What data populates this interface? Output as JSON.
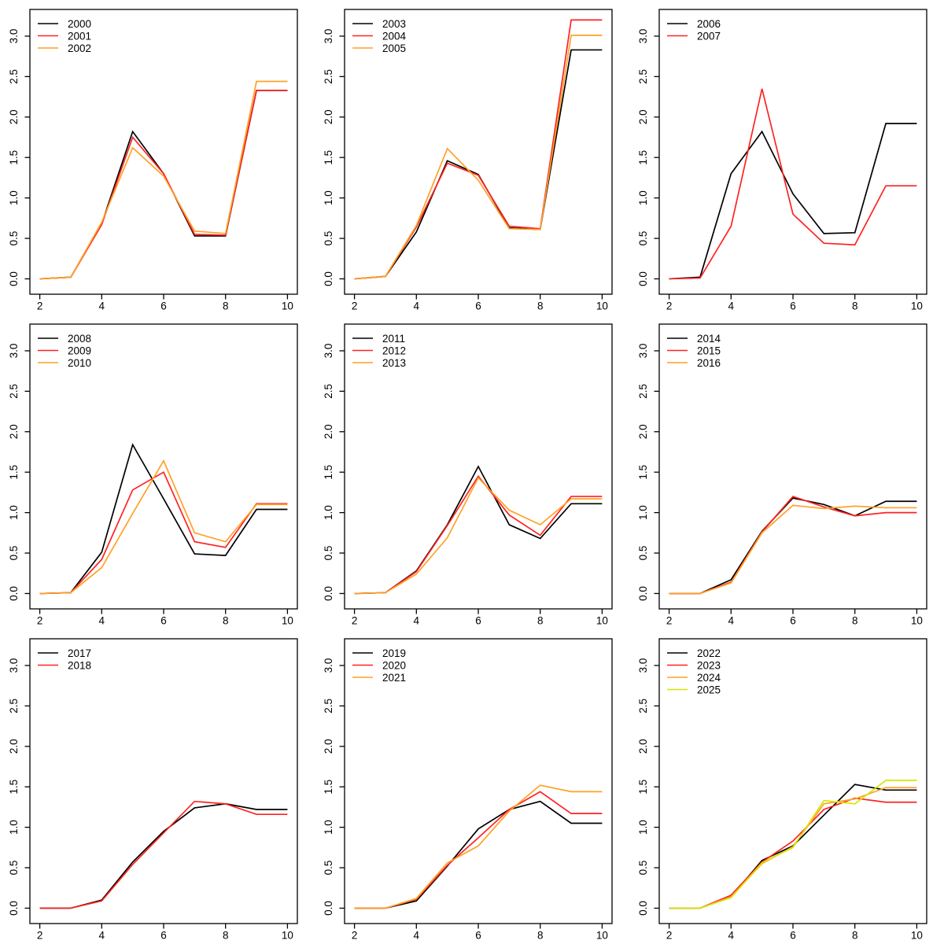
{
  "page": {
    "background": "#ffffff"
  },
  "palette": {
    "black": "#000000",
    "red": "#ff2222",
    "orange": "#ffa226",
    "yellow": "#d4e600"
  },
  "chart_data": [
    {
      "type": "line",
      "x": [
        2,
        3,
        4,
        5,
        6,
        7,
        8,
        9,
        10
      ],
      "xticks": [
        2,
        4,
        6,
        8,
        10
      ],
      "yticks": [
        0.0,
        0.5,
        1.0,
        1.5,
        2.0,
        2.5,
        3.0
      ],
      "ylim": [
        0,
        3.3
      ],
      "title": "",
      "xlabel": "",
      "ylabel": "",
      "grid": false,
      "legend_position": "top-left",
      "series": [
        {
          "name": "2000",
          "color": "#000000",
          "values": [
            0,
            0.02,
            0.68,
            1.82,
            1.3,
            0.53,
            0.53,
            2.33,
            2.33
          ]
        },
        {
          "name": "2001",
          "color": "#ff2222",
          "values": [
            0,
            0.02,
            0.67,
            1.75,
            1.3,
            0.55,
            0.54,
            2.33,
            2.33
          ]
        },
        {
          "name": "2002",
          "color": "#ffa226",
          "values": [
            0,
            0.02,
            0.7,
            1.62,
            1.27,
            0.59,
            0.56,
            2.44,
            2.44
          ]
        }
      ]
    },
    {
      "type": "line",
      "x": [
        2,
        3,
        4,
        5,
        6,
        7,
        8,
        9,
        10
      ],
      "xticks": [
        2,
        4,
        6,
        8,
        10
      ],
      "yticks": [
        0.0,
        0.5,
        1.0,
        1.5,
        2.0,
        2.5,
        3.0
      ],
      "ylim": [
        0,
        3.3
      ],
      "title": "",
      "xlabel": "",
      "ylabel": "",
      "grid": false,
      "legend_position": "top-left",
      "series": [
        {
          "name": "2003",
          "color": "#000000",
          "values": [
            0,
            0.03,
            0.58,
            1.46,
            1.29,
            0.63,
            0.61,
            2.83,
            2.83
          ]
        },
        {
          "name": "2004",
          "color": "#ff2222",
          "values": [
            0,
            0.03,
            0.64,
            1.43,
            1.28,
            0.65,
            0.62,
            3.2,
            3.2
          ]
        },
        {
          "name": "2005",
          "color": "#ffa226",
          "values": [
            0,
            0.03,
            0.66,
            1.61,
            1.22,
            0.62,
            0.61,
            3.01,
            3.01
          ]
        }
      ]
    },
    {
      "type": "line",
      "x": [
        2,
        3,
        4,
        5,
        6,
        7,
        8,
        9,
        10
      ],
      "xticks": [
        2,
        4,
        6,
        8,
        10
      ],
      "yticks": [
        0.0,
        0.5,
        1.0,
        1.5,
        2.0,
        2.5,
        3.0
      ],
      "ylim": [
        0,
        3.3
      ],
      "title": "",
      "xlabel": "",
      "ylabel": "",
      "grid": false,
      "legend_position": "top-left",
      "series": [
        {
          "name": "2006",
          "color": "#000000",
          "values": [
            0,
            0.02,
            1.3,
            1.82,
            1.05,
            0.56,
            0.57,
            1.92,
            1.92
          ]
        },
        {
          "name": "2007",
          "color": "#ff2222",
          "values": [
            0,
            0.01,
            0.65,
            2.35,
            0.8,
            0.44,
            0.42,
            1.15,
            1.15
          ]
        }
      ]
    },
    {
      "type": "line",
      "x": [
        2,
        3,
        4,
        5,
        6,
        7,
        8,
        9,
        10
      ],
      "xticks": [
        2,
        4,
        6,
        8,
        10
      ],
      "yticks": [
        0.0,
        0.5,
        1.0,
        1.5,
        2.0,
        2.5,
        3.0
      ],
      "ylim": [
        0,
        3.3
      ],
      "title": "",
      "xlabel": "",
      "ylabel": "",
      "grid": false,
      "legend_position": "top-left",
      "series": [
        {
          "name": "2008",
          "color": "#000000",
          "values": [
            0,
            0.01,
            0.51,
            1.84,
            1.17,
            0.49,
            0.47,
            1.04,
            1.04
          ]
        },
        {
          "name": "2009",
          "color": "#ff2222",
          "values": [
            0,
            0.01,
            0.42,
            1.28,
            1.5,
            0.64,
            0.57,
            1.11,
            1.11
          ]
        },
        {
          "name": "2010",
          "color": "#ffa226",
          "values": [
            0,
            0.01,
            0.32,
            0.99,
            1.64,
            0.75,
            0.64,
            1.1,
            1.1
          ]
        }
      ]
    },
    {
      "type": "line",
      "x": [
        2,
        3,
        4,
        5,
        6,
        7,
        8,
        9,
        10
      ],
      "xticks": [
        2,
        4,
        6,
        8,
        10
      ],
      "yticks": [
        0.0,
        0.5,
        1.0,
        1.5,
        2.0,
        2.5,
        3.0
      ],
      "ylim": [
        0,
        3.3
      ],
      "title": "",
      "xlabel": "",
      "ylabel": "",
      "grid": false,
      "legend_position": "top-left",
      "series": [
        {
          "name": "2011",
          "color": "#000000",
          "values": [
            0,
            0.01,
            0.28,
            0.85,
            1.57,
            0.85,
            0.68,
            1.11,
            1.11
          ]
        },
        {
          "name": "2012",
          "color": "#ff2222",
          "values": [
            0,
            0.01,
            0.27,
            0.84,
            1.45,
            0.97,
            0.72,
            1.2,
            1.2
          ]
        },
        {
          "name": "2013",
          "color": "#ffa226",
          "values": [
            0,
            0.01,
            0.24,
            0.69,
            1.43,
            1.03,
            0.85,
            1.17,
            1.17
          ]
        }
      ]
    },
    {
      "type": "line",
      "x": [
        2,
        3,
        4,
        5,
        6,
        7,
        8,
        9,
        10
      ],
      "xticks": [
        2,
        4,
        6,
        8,
        10
      ],
      "yticks": [
        0.0,
        0.5,
        1.0,
        1.5,
        2.0,
        2.5,
        3.0
      ],
      "ylim": [
        0,
        3.3
      ],
      "title": "",
      "xlabel": "",
      "ylabel": "",
      "grid": false,
      "legend_position": "top-left",
      "series": [
        {
          "name": "2014",
          "color": "#000000",
          "values": [
            0,
            0,
            0.17,
            0.77,
            1.18,
            1.1,
            0.96,
            1.14,
            1.14
          ]
        },
        {
          "name": "2015",
          "color": "#ff2222",
          "values": [
            0,
            0,
            0.14,
            0.76,
            1.2,
            1.07,
            0.96,
            1.0,
            1.0
          ]
        },
        {
          "name": "2016",
          "color": "#ffa226",
          "values": [
            0,
            0,
            0.13,
            0.75,
            1.09,
            1.05,
            1.08,
            1.06,
            1.06
          ]
        }
      ]
    },
    {
      "type": "line",
      "x": [
        2,
        3,
        4,
        5,
        6,
        7,
        8,
        9,
        10
      ],
      "xticks": [
        2,
        4,
        6,
        8,
        10
      ],
      "yticks": [
        0.0,
        0.5,
        1.0,
        1.5,
        2.0,
        2.5,
        3.0
      ],
      "ylim": [
        0,
        3.3
      ],
      "title": "",
      "xlabel": "",
      "ylabel": "",
      "grid": false,
      "legend_position": "top-left",
      "series": [
        {
          "name": "2017",
          "color": "#000000",
          "values": [
            0,
            0,
            0.1,
            0.57,
            0.95,
            1.24,
            1.29,
            1.22,
            1.22
          ]
        },
        {
          "name": "2018",
          "color": "#ff2222",
          "values": [
            0,
            0,
            0.09,
            0.54,
            0.93,
            1.32,
            1.29,
            1.16,
            1.16
          ]
        }
      ]
    },
    {
      "type": "line",
      "x": [
        2,
        3,
        4,
        5,
        6,
        7,
        8,
        9,
        10
      ],
      "xticks": [
        2,
        4,
        6,
        8,
        10
      ],
      "yticks": [
        0.0,
        0.5,
        1.0,
        1.5,
        2.0,
        2.5,
        3.0
      ],
      "ylim": [
        0,
        3.3
      ],
      "title": "",
      "xlabel": "",
      "ylabel": "",
      "grid": false,
      "legend_position": "top-left",
      "series": [
        {
          "name": "2019",
          "color": "#000000",
          "values": [
            0,
            0,
            0.09,
            0.52,
            0.98,
            1.22,
            1.32,
            1.05,
            1.05
          ]
        },
        {
          "name": "2020",
          "color": "#ff2222",
          "values": [
            0,
            0,
            0.11,
            0.53,
            0.87,
            1.22,
            1.44,
            1.17,
            1.17
          ]
        },
        {
          "name": "2021",
          "color": "#ffa226",
          "values": [
            0,
            0,
            0.12,
            0.56,
            0.77,
            1.2,
            1.52,
            1.44,
            1.44
          ]
        }
      ]
    },
    {
      "type": "line",
      "x": [
        2,
        3,
        4,
        5,
        6,
        7,
        8,
        9,
        10
      ],
      "xticks": [
        2,
        4,
        6,
        8,
        10
      ],
      "yticks": [
        0.0,
        0.5,
        1.0,
        1.5,
        2.0,
        2.5,
        3.0
      ],
      "ylim": [
        0,
        3.3
      ],
      "title": "",
      "xlabel": "",
      "ylabel": "",
      "grid": false,
      "legend_position": "top-left",
      "series": [
        {
          "name": "2022",
          "color": "#000000",
          "values": [
            0,
            0,
            0.14,
            0.59,
            0.77,
            1.15,
            1.53,
            1.46,
            1.46
          ]
        },
        {
          "name": "2023",
          "color": "#ff2222",
          "values": [
            0,
            0,
            0.16,
            0.57,
            0.83,
            1.22,
            1.36,
            1.31,
            1.31
          ]
        },
        {
          "name": "2024",
          "color": "#ffa226",
          "values": [
            0,
            0,
            0.14,
            0.55,
            0.76,
            1.29,
            1.35,
            1.49,
            1.49
          ]
        },
        {
          "name": "2025",
          "color": "#d4e600",
          "values": [
            0,
            0,
            0.13,
            0.56,
            0.75,
            1.33,
            1.29,
            1.58,
            1.58
          ]
        }
      ]
    }
  ]
}
